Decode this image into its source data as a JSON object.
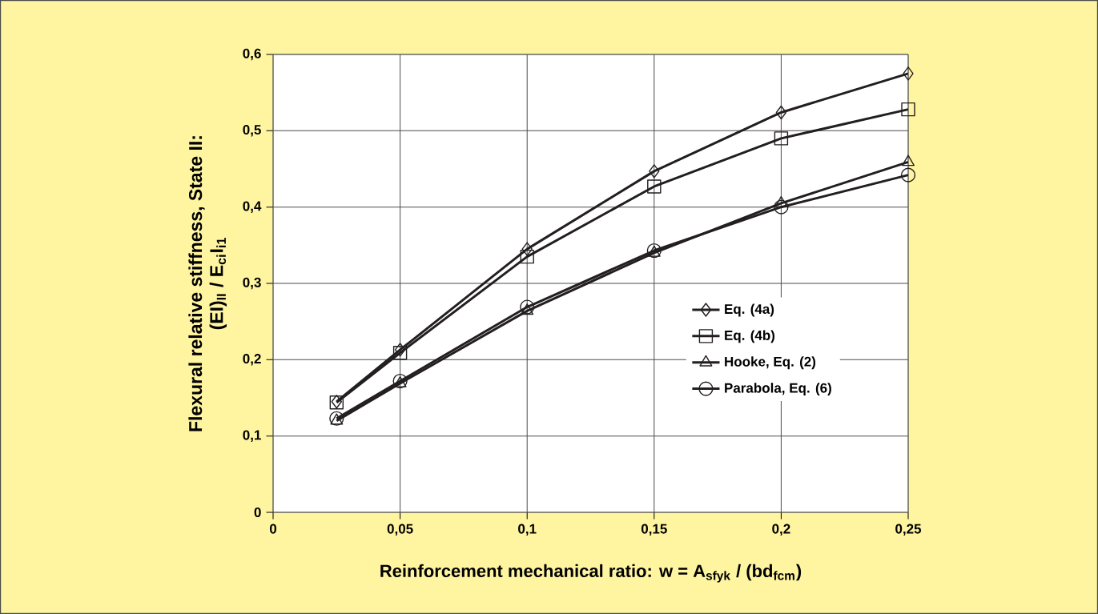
{
  "chart_data": {
    "type": "line",
    "xlabel": "Reinforcement mechanical ratio: w = A$_{sfyk}$ / (bd$_{fcm}$)",
    "ylabel": "Flexural relative stiffness, State II:",
    "y2label": "(EI)$_{II}$ / E$_{ci}$I$_{i1}$",
    "x": [
      0.025,
      0.05,
      0.1,
      0.15,
      0.2,
      0.25
    ],
    "xlim": [
      0,
      0.25
    ],
    "ylim": [
      0,
      0.6
    ],
    "xticks": [
      {
        "value": 0,
        "label": "0"
      },
      {
        "value": 0.05,
        "label": "0,05"
      },
      {
        "value": 0.1,
        "label": "0,1"
      },
      {
        "value": 0.15,
        "label": "0,15"
      },
      {
        "value": 0.2,
        "label": "0,2"
      },
      {
        "value": 0.25,
        "label": "0,25"
      }
    ],
    "yticks": [
      {
        "value": 0,
        "label": "0"
      },
      {
        "value": 0.1,
        "label": "0,1"
      },
      {
        "value": 0.2,
        "label": "0,2"
      },
      {
        "value": 0.3,
        "label": "0,3"
      },
      {
        "value": 0.4,
        "label": "0,4"
      },
      {
        "value": 0.5,
        "label": "0,5"
      },
      {
        "value": 0.6,
        "label": "0,6"
      }
    ],
    "grid": true,
    "legend": "right",
    "line_style": "solid",
    "series": [
      {
        "name": "Eq. (4a)",
        "color": "#231f20",
        "marker": "diamond",
        "values": [
          0.145,
          0.213,
          0.345,
          0.447,
          0.524,
          0.575
        ]
      },
      {
        "name": "Eq. (4b)",
        "color": "#231f20",
        "marker": "square",
        "values": [
          0.144,
          0.209,
          0.335,
          0.427,
          0.49,
          0.528
        ]
      },
      {
        "name": "Hooke, Eq. (2)",
        "color": "#231f20",
        "marker": "triangle",
        "values": [
          0.12,
          0.169,
          0.264,
          0.34,
          0.405,
          0.459
        ]
      },
      {
        "name": "Parabola, Eq. (6)",
        "color": "#231f20",
        "marker": "circle",
        "values": [
          0.123,
          0.172,
          0.269,
          0.343,
          0.4,
          0.442
        ]
      }
    ]
  }
}
